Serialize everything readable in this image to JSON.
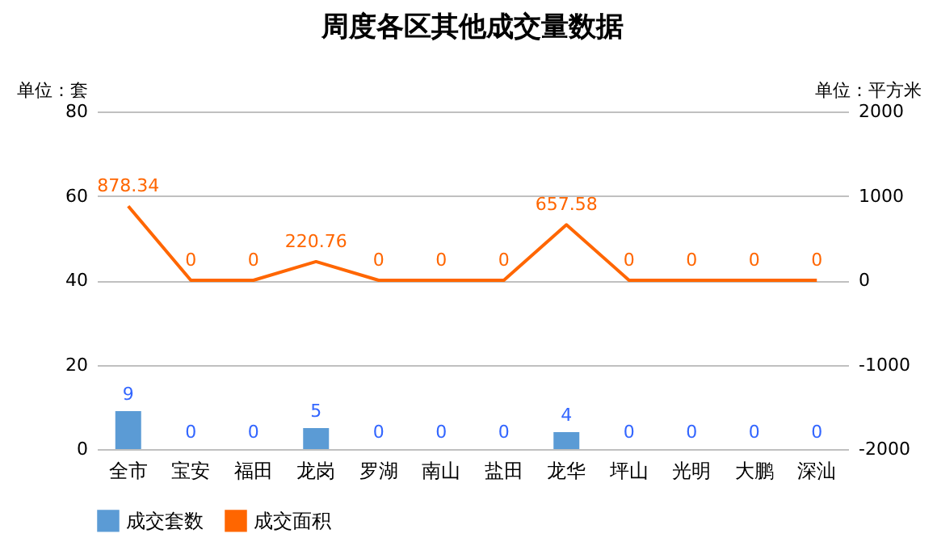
{
  "chart_data": {
    "type": "bar",
    "title": "周度各区其他成交量数据",
    "ylabel": "单位：套",
    "y2label": "单位：平方米",
    "categories": [
      "全市",
      "宝安",
      "福田",
      "龙岗",
      "罗湖",
      "南山",
      "盐田",
      "龙华",
      "坪山",
      "光明",
      "大鹏",
      "深汕"
    ],
    "series": [
      {
        "name": "成交套数",
        "color": "#5b9bd5",
        "values": [
          9,
          0,
          0,
          5,
          0,
          0,
          0,
          4,
          0,
          0,
          0,
          0
        ]
      },
      {
        "name": "成交面积",
        "type": "line",
        "axis": "y2",
        "color": "#ff6600",
        "values": [
          878.34,
          0,
          0,
          220.76,
          0,
          0,
          0,
          657.58,
          0,
          0,
          0,
          0
        ]
      }
    ],
    "ylim": [
      0,
      80
    ],
    "yticks": [
      0,
      20,
      40,
      60,
      80
    ],
    "y2lim": [
      -2000,
      2000
    ],
    "y2ticks": [
      -2000,
      -1000,
      0,
      1000,
      2000
    ],
    "data_labels": true,
    "grid": "y",
    "legend": "bottom",
    "marker": "none",
    "line_style": "solid"
  }
}
